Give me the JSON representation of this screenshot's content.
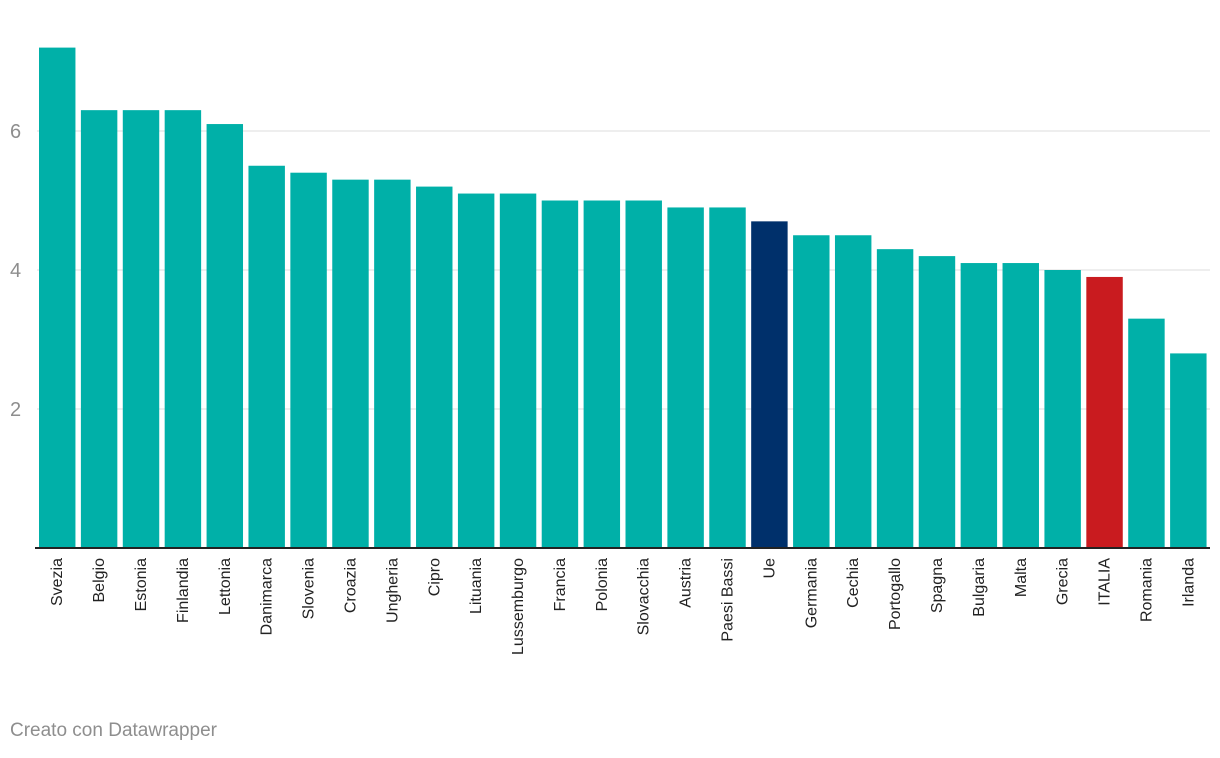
{
  "chart_data": {
    "type": "bar",
    "title": "",
    "xlabel": "",
    "ylabel": "",
    "ylim": [
      0,
      7.5
    ],
    "yticks": [
      2,
      4,
      6
    ],
    "grid": true,
    "categories": [
      "Svezia",
      "Belgio",
      "Estonia",
      "Finlandia",
      "Lettonia",
      "Danimarca",
      "Slovenia",
      "Croazia",
      "Ungheria",
      "Cipro",
      "Lituania",
      "Lussemburgo",
      "Francia",
      "Polonia",
      "Slovacchia",
      "Austria",
      "Paesi Bassi",
      "Ue",
      "Germania",
      "Cechia",
      "Portogallo",
      "Spagna",
      "Bulgaria",
      "Malta",
      "Grecia",
      "ITALIA",
      "Romania",
      "Irlanda"
    ],
    "values": [
      7.2,
      6.3,
      6.3,
      6.3,
      6.1,
      5.5,
      5.4,
      5.3,
      5.3,
      5.2,
      5.1,
      5.1,
      5.0,
      5.0,
      5.0,
      4.9,
      4.9,
      4.7,
      4.5,
      4.5,
      4.3,
      4.2,
      4.1,
      4.1,
      4.0,
      3.9,
      3.3,
      2.8
    ],
    "colors": {
      "default": "#00b0a8",
      "Ue": "#00306b",
      "ITALIA": "#c91b1f",
      "grid": "#dddddd",
      "axis": "#222222"
    }
  },
  "footer": {
    "credit": "Creato con Datawrapper"
  }
}
